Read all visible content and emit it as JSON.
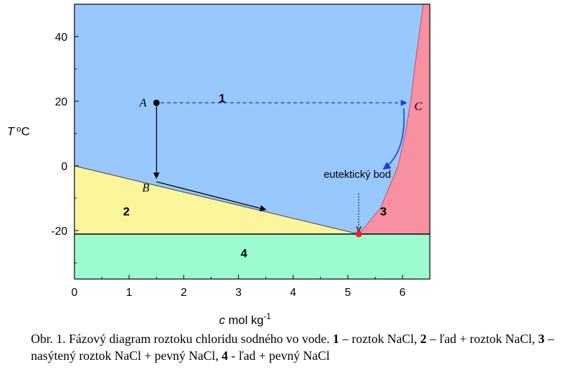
{
  "chart_data": {
    "type": "diagram",
    "title": "",
    "xlabel": "c mol kg-1",
    "xlabel_var": "c",
    "xlabel_unit": " mol kg",
    "xlabel_sup": "-1",
    "ylabel": "T oC",
    "ylabel_var": "T",
    "ylabel_sup": "o",
    "ylabel_unit": "C",
    "xlim": [
      0,
      6.5
    ],
    "ylim": [
      -35,
      50
    ],
    "x_ticks": [
      "0",
      "1",
      "2",
      "3",
      "4",
      "5",
      "6"
    ],
    "y_ticks": [
      "-20",
      "0",
      "20",
      "40"
    ],
    "region_labels": [
      {
        "label": "1",
        "x": 2.7,
        "y": 21
      },
      {
        "label": "2",
        "x": 0.95,
        "y": -14
      },
      {
        "label": "3",
        "x": 5.65,
        "y": -14
      },
      {
        "label": "4",
        "x": 3.1,
        "y": -27
      }
    ],
    "regions": {
      "liquid_color": "#99c8ff",
      "ice_color": "#fbf69c",
      "saturated_color": "#f790a0",
      "solid_color": "#9cfcd0"
    },
    "ice_line": [
      [
        0,
        0
      ],
      [
        5.2,
        -21.1
      ]
    ],
    "solubility_curve": [
      [
        5.2,
        -21.1
      ],
      [
        5.6,
        -13
      ],
      [
        5.92,
        0
      ],
      [
        6.05,
        10
      ],
      [
        6.15,
        20
      ],
      [
        6.22,
        30
      ],
      [
        6.3,
        40
      ],
      [
        6.38,
        50
      ]
    ],
    "eutectic_T": -21.1,
    "points": [
      {
        "label": "A",
        "x": 1.5,
        "y": 19.5
      },
      {
        "label": "B",
        "x": 1.5,
        "y": -4.7
      },
      {
        "label": "C",
        "x": 6.1,
        "y": 19.5
      }
    ],
    "eutectic_point": {
      "label": "eutektický bod",
      "x": 5.2,
      "y": -21.1,
      "color": "#ff1a1a"
    },
    "arrow_color_blue": "#1a3fd1"
  },
  "caption": {
    "prefix": "Obr. 1. Fázový diagram roztoku chloridu sodného vo vode. ",
    "n1": "1",
    "t1": " – roztok NaCl, ",
    "n2": "2",
    "t2": " – ľad + roztok NaCl, ",
    "n3": "3",
    "t3": " – nasýtený roztok NaCl + pevný NaCl, ",
    "n4": "4",
    "t4": " - ľad + pevný NaCl"
  }
}
